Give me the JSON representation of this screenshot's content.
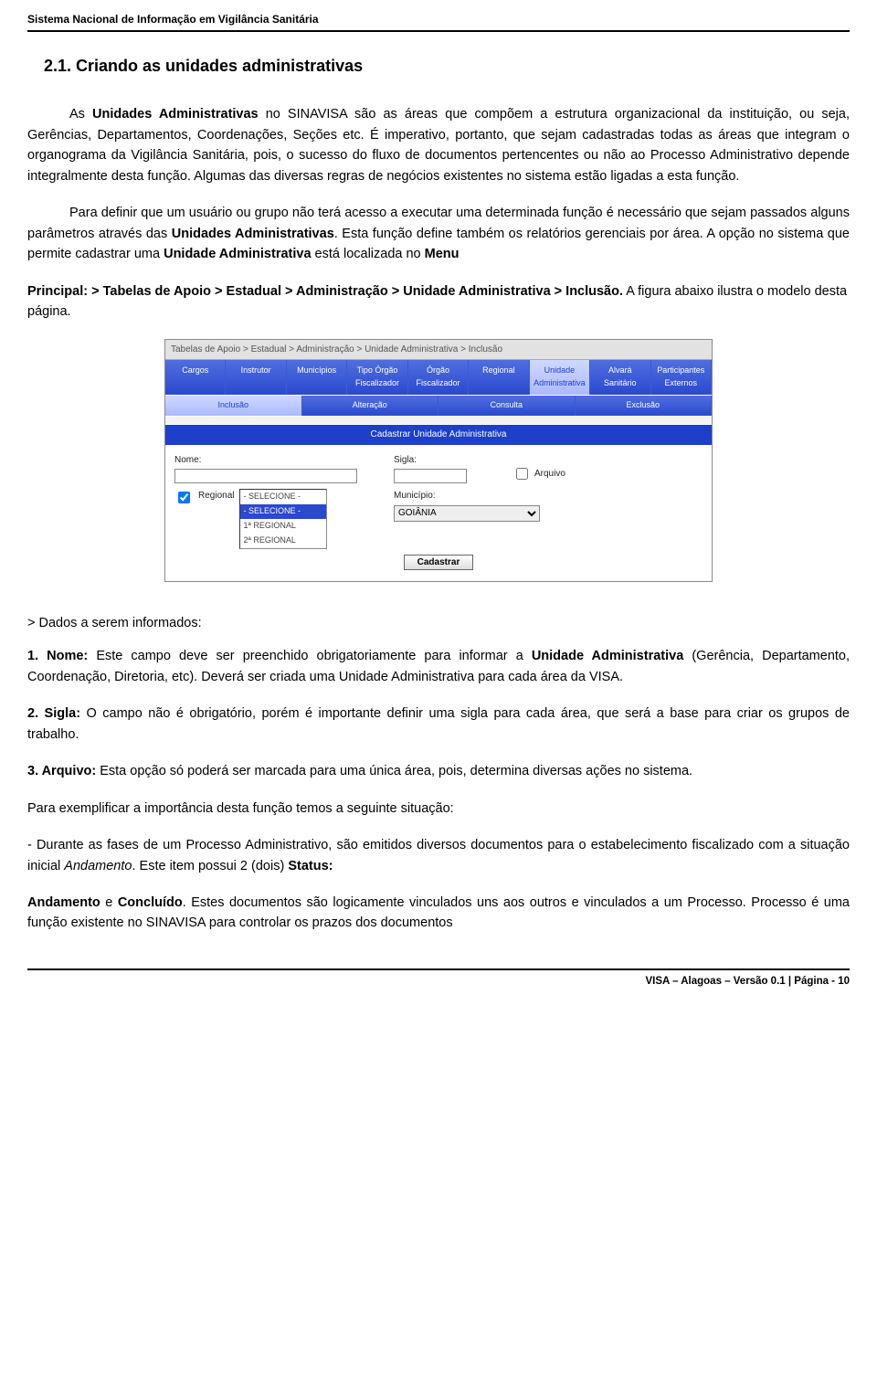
{
  "header": {
    "system_name": "Sistema Nacional de Informação em Vigilância Sanitária"
  },
  "section": {
    "number_title": "2.1. Criando as unidades administrativas"
  },
  "body": {
    "p1_a": "As ",
    "p1_b": "Unidades Administrativas",
    "p1_c": " no SINAVISA são as áreas que compõem a estrutura organizacional da instituição, ou seja, Gerências, Departamentos, Coordenações, Seções etc. É imperativo, portanto, que sejam cadastradas todas as áreas que integram o organograma da Vigilância Sanitária, pois, o sucesso do fluxo de documentos pertencentes ou não ao Processo Administrativo depende integralmente desta função. Algumas das diversas regras de negócios existentes no sistema estão ligadas a esta função.",
    "p2_a": "Para definir que um usuário ou grupo não terá acesso a executar uma determinada função é necessário que sejam passados alguns parâmetros através das ",
    "p2_b": "Unidades Administrativas",
    "p2_c": ". Esta função define também os relatórios gerenciais por área. A opção no sistema que permite cadastrar uma ",
    "p2_d": "Unidade Administrativa",
    "p2_e": " está localizada no ",
    "p2_f": "Menu",
    "p3_a": "Principal: > Tabelas de Apoio > Estadual > Administração > Unidade Administrativa > Inclusão.",
    "p3_b": " A figura abaixo ilustra o modelo desta página."
  },
  "screenshot": {
    "breadcrumb": "Tabelas de Apoio > Estadual > Administração > Unidade Administrativa > Inclusão",
    "tabs_top": [
      "Cargos",
      "Instrutor",
      "Municípios",
      "Tipo Órgão Fiscalizador",
      "Órgão Fiscalizador",
      "Regional",
      "Unidade Administrativa",
      "Alvará Sanitário",
      "Participantes Externos"
    ],
    "tabs_top_active_index": 6,
    "tabs_sub": [
      "Inclusão",
      "Alteração",
      "Consulta",
      "Exclusão"
    ],
    "tabs_sub_active_index": 0,
    "panel_title": "Cadastrar Unidade Administrativa",
    "labels": {
      "nome": "Nome:",
      "sigla": "Sigla:",
      "arquivo": "Arquivo",
      "regional": "Regional",
      "municipio": "Município:"
    },
    "regional_options": [
      "- SELECIONE -",
      "- SELECIONE -",
      "1ª REGIONAL",
      "2ª REGIONAL"
    ],
    "municipio_value": "GOIÂNIA",
    "button": "Cadastrar"
  },
  "fields": {
    "heading": "> Dados a serem informados:",
    "f1_a": "1. Nome:",
    "f1_b": " Este campo deve ser preenchido obrigatoriamente para informar a ",
    "f1_c": "Unidade Administrativa",
    "f1_d": " (Gerência, Departamento, Coordenação, Diretoria, etc). Deverá ser criada uma Unidade Administrativa para cada área da VISA.",
    "f2_a": "2. Sigla:",
    "f2_b": " O campo não é obrigatório, porém é importante definir uma sigla para cada área, que será a base para criar os grupos de trabalho.",
    "f3_a": "3. Arquivo:",
    "f3_b": " Esta opção só poderá ser marcada para uma única área, pois, determina diversas ações no sistema."
  },
  "example": {
    "intro": "Para exemplificar a importância desta função temos a seguinte situação:",
    "l1_a": "- Durante as fases de um Processo Administrativo, são emitidos diversos documentos para o estabelecimento fiscalizado com a situação inicial ",
    "l1_b": "Andamento",
    "l1_c": ". Este item possui 2 (dois) ",
    "l1_d": "Status:",
    "l2_a": "Andamento",
    "l2_b": " e ",
    "l2_c": "Concluído",
    "l2_d": ". Estes documentos são logicamente vinculados uns aos outros e vinculados a um Processo. Processo é uma função existente no SINAVISA para controlar os prazos dos documentos"
  },
  "footer": {
    "text": "VISA – Alagoas – Versão 0.1 | Página - 10"
  },
  "colors": {
    "primary_blue": "#1e3fc7",
    "header_rule": "#000000"
  }
}
